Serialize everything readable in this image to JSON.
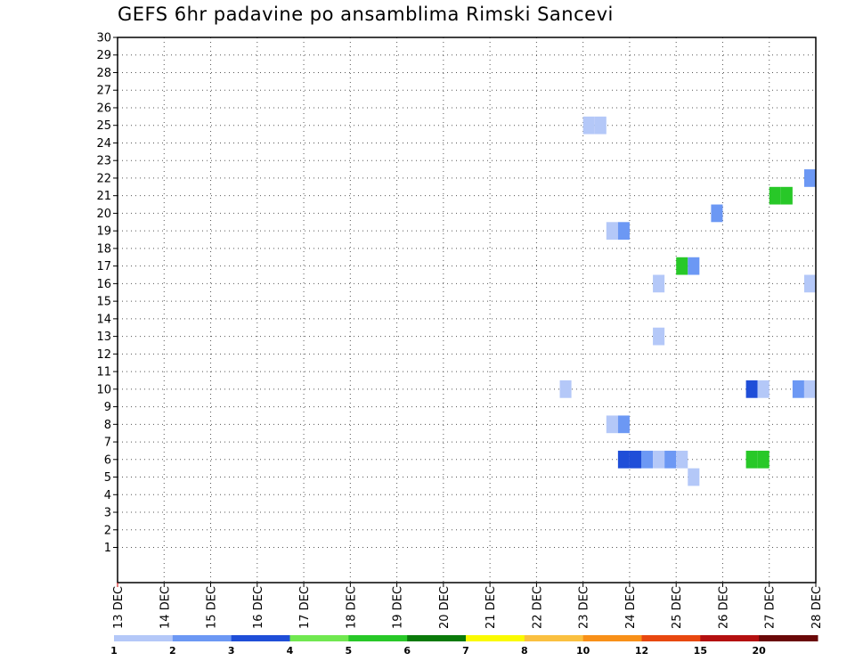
{
  "chart_data": {
    "type": "heatmap",
    "title": "GEFS 6hr padavine po ansamblima Rimski Sancevi",
    "xlabel": "",
    "ylabel": "",
    "x_ticks": [
      "13 DEC",
      "14 DEC",
      "15 DEC",
      "16 DEC",
      "17 DEC",
      "18 DEC",
      "19 DEC",
      "20 DEC",
      "21 DEC",
      "22 DEC",
      "23 DEC",
      "24 DEC",
      "25 DEC",
      "26 DEC",
      "27 DEC",
      "28 DEC"
    ],
    "y_ticks": [
      "1",
      "2",
      "3",
      "4",
      "5",
      "6",
      "7",
      "8",
      "9",
      "10",
      "11",
      "12",
      "13",
      "14",
      "15",
      "16",
      "17",
      "18",
      "19",
      "20",
      "21",
      "22",
      "23",
      "24",
      "25",
      "26",
      "27",
      "28",
      "29",
      "30"
    ],
    "xlim": [
      "13 DEC 00Z",
      "28 DEC 00Z"
    ],
    "ylim": [
      0,
      30
    ],
    "grid": true,
    "time_step_hours": 6,
    "colorbar": {
      "labels": [
        "1",
        "2",
        "3",
        "4",
        "5",
        "6",
        "7",
        "8",
        "10",
        "12",
        "15",
        "20"
      ],
      "colors": [
        "#b4c8f8",
        "#6c98f4",
        "#1f4ed8",
        "#70e850",
        "#28c828",
        "#0a7a0a",
        "#fafa00",
        "#fac040",
        "#f89018",
        "#e84810",
        "#b41010",
        "#6a0808"
      ]
    },
    "cells": [
      {
        "member": 25,
        "time": "23 DEC 00Z",
        "precip": 1.5
      },
      {
        "member": 25,
        "time": "23 DEC 06Z",
        "precip": 1.5
      },
      {
        "member": 22,
        "time": "27 DEC 18Z",
        "precip": 2.5
      },
      {
        "member": 21,
        "time": "27 DEC 00Z",
        "precip": 5.5
      },
      {
        "member": 21,
        "time": "27 DEC 06Z",
        "precip": 5.5
      },
      {
        "member": 20,
        "time": "25 DEC 18Z",
        "precip": 2.5
      },
      {
        "member": 19,
        "time": "23 DEC 12Z",
        "precip": 1.5
      },
      {
        "member": 19,
        "time": "23 DEC 18Z",
        "precip": 2.5
      },
      {
        "member": 17,
        "time": "25 DEC 00Z",
        "precip": 5.5
      },
      {
        "member": 17,
        "time": "25 DEC 06Z",
        "precip": 2.5
      },
      {
        "member": 16,
        "time": "24 DEC 12Z",
        "precip": 1.5
      },
      {
        "member": 16,
        "time": "27 DEC 18Z",
        "precip": 1.5
      },
      {
        "member": 13,
        "time": "24 DEC 12Z",
        "precip": 1.5
      },
      {
        "member": 10,
        "time": "22 DEC 12Z",
        "precip": 1.5
      },
      {
        "member": 10,
        "time": "26 DEC 12Z",
        "precip": 3.5
      },
      {
        "member": 10,
        "time": "26 DEC 18Z",
        "precip": 1.5
      },
      {
        "member": 10,
        "time": "27 DEC 12Z",
        "precip": 2.5
      },
      {
        "member": 10,
        "time": "27 DEC 18Z",
        "precip": 1.5
      },
      {
        "member": 8,
        "time": "23 DEC 12Z",
        "precip": 1.5
      },
      {
        "member": 8,
        "time": "23 DEC 18Z",
        "precip": 2.5
      },
      {
        "member": 6,
        "time": "23 DEC 18Z",
        "precip": 3.5
      },
      {
        "member": 6,
        "time": "24 DEC 00Z",
        "precip": 3.5
      },
      {
        "member": 6,
        "time": "24 DEC 06Z",
        "precip": 2.5
      },
      {
        "member": 6,
        "time": "24 DEC 12Z",
        "precip": 1.5
      },
      {
        "member": 6,
        "time": "24 DEC 18Z",
        "precip": 2.5
      },
      {
        "member": 6,
        "time": "25 DEC 00Z",
        "precip": 1.5
      },
      {
        "member": 6,
        "time": "26 DEC 12Z",
        "precip": 5.5
      },
      {
        "member": 6,
        "time": "26 DEC 18Z",
        "precip": 5.5
      },
      {
        "member": 5,
        "time": "25 DEC 06Z",
        "precip": 1.5
      }
    ]
  }
}
